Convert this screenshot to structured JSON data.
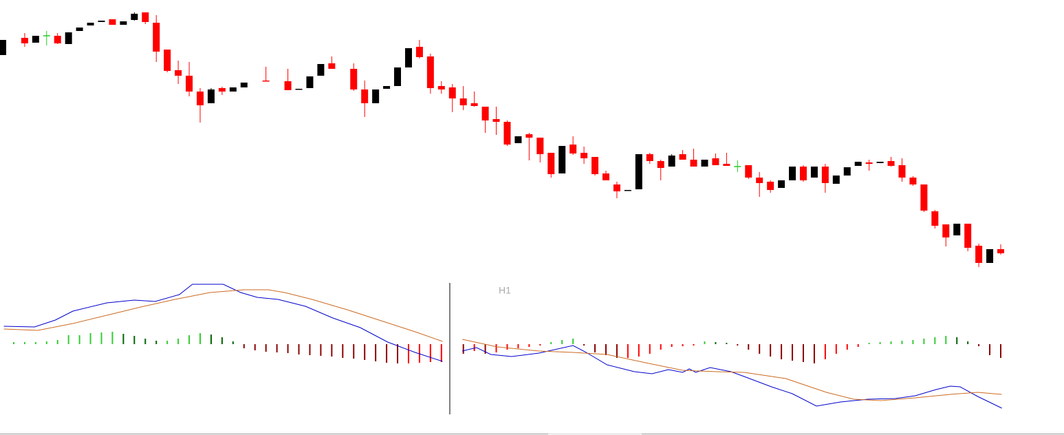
{
  "chart_data": [
    {
      "type": "candlestick",
      "categories": [
        null,
        null,
        null,
        null,
        null,
        null,
        null,
        null,
        null,
        null,
        null,
        null,
        null,
        null,
        null,
        null,
        null,
        null,
        null,
        null,
        null,
        null,
        null,
        null,
        null,
        null,
        null,
        null,
        null,
        null,
        null,
        null,
        null,
        null,
        null,
        null,
        null,
        null,
        null,
        null,
        null,
        null,
        null,
        null,
        null,
        null,
        null,
        null,
        null,
        null,
        null,
        null,
        null,
        null,
        null,
        null,
        null,
        null,
        null,
        null,
        null,
        null,
        null,
        null,
        null,
        null,
        null,
        null,
        null,
        null,
        null,
        null,
        null,
        null,
        null,
        null,
        null,
        null,
        null,
        null,
        null,
        null,
        null,
        null,
        null,
        null,
        null,
        null,
        null,
        null,
        null,
        null
      ],
      "open": [
        320,
        null,
        345,
        338,
        348,
        348,
        336,
        355,
        363,
        368,
        372,
        364,
        371,
        382,
        367,
        328,
        298,
        290,
        267,
        250,
        272,
        267,
        273,
        null,
        283,
        null,
        282,
        270,
        272,
        290,
        308,
        null,
        300,
        270,
        250,
        271,
        275,
        302,
        332,
        318,
        275,
        273,
        257,
        250,
        245,
        227,
        223,
        192,
        205,
        200,
        178,
        148,
        190,
        178,
        172,
        148,
        132,
        123,
        125,
        176,
        166,
        158,
        176,
        168,
        158,
        170,
        162,
        158,
        160,
        142,
        136,
        127,
        138,
        158,
        142,
        158,
        133,
        145,
        159,
        164,
        163,
        166,
        160,
        142,
        132,
        93,
        74,
        58,
        75,
        43,
        18,
        38
      ],
      "high": [
        342,
        null,
        352,
        348,
        355,
        352,
        353,
        360,
        367,
        370,
        372,
        369,
        382,
        382,
        378,
        328,
        312,
        310,
        272,
        272,
        274,
        273,
        280,
        null,
        303,
        null,
        300,
        271,
        289,
        307,
        318,
        null,
        308,
        283,
        270,
        275,
        302,
        330,
        342,
        322,
        282,
        278,
        275,
        267,
        245,
        245,
        225,
        202,
        207,
        200,
        178,
        188,
        202,
        187,
        172,
        152,
        136,
        124,
        176,
        178,
        168,
        176,
        182,
        184,
        168,
        177,
        178,
        167,
        160,
        150,
        138,
        138,
        158,
        160,
        158,
        162,
        145,
        157,
        165,
        168,
        165,
        172,
        170,
        144,
        132,
        95,
        74,
        75,
        75,
        46,
        38,
        45
      ],
      "low": [
        320,
        null,
        332,
        338,
        334,
        336,
        336,
        355,
        363,
        368,
        364,
        364,
        370,
        365,
        310,
        295,
        278,
        260,
        222,
        250,
        262,
        267,
        273,
        null,
        282,
        null,
        269,
        270,
        272,
        290,
        300,
        null,
        268,
        230,
        250,
        271,
        275,
        302,
        315,
        264,
        264,
        237,
        240,
        245,
        207,
        204,
        188,
        192,
        167,
        164,
        142,
        148,
        175,
        162,
        145,
        138,
        112,
        123,
        125,
        162,
        138,
        158,
        168,
        158,
        158,
        160,
        159,
        150,
        140,
        114,
        120,
        127,
        138,
        136,
        142,
        120,
        133,
        145,
        159,
        152,
        163,
        158,
        136,
        130,
        92,
        68,
        42,
        58,
        35,
        12,
        18,
        30
      ],
      "close": [
        342,
        null,
        337,
        348,
        348,
        337,
        353,
        360,
        367,
        370,
        364,
        369,
        380,
        368,
        325,
        297,
        290,
        267,
        247,
        270,
        267,
        273,
        280,
        null,
        282,
        null,
        269,
        271,
        289,
        307,
        300,
        null,
        270,
        250,
        270,
        275,
        302,
        330,
        317,
        272,
        270,
        257,
        247,
        246,
        225,
        223,
        190,
        202,
        200,
        176,
        147,
        188,
        177,
        170,
        147,
        138,
        122,
        124,
        176,
        166,
        156,
        174,
        168,
        158,
        168,
        160,
        159,
        158,
        142,
        134,
        124,
        138,
        158,
        138,
        158,
        134,
        145,
        157,
        165,
        162,
        165,
        159,
        142,
        132,
        94,
        72,
        55,
        75,
        40,
        18,
        38,
        32
      ],
      "xlim": [
        0,
        91
      ],
      "ylim": [
        0,
        400
      ],
      "up_color": "#000000",
      "down_color": "#ff0000",
      "doji_color": "#22cc22"
    },
    {
      "type": "macd",
      "annotation": "H1",
      "categories": [
        null,
        null,
        null,
        null,
        null,
        null,
        null,
        null,
        null,
        null,
        null,
        null,
        null,
        null,
        null,
        null,
        null,
        null,
        null,
        null,
        null,
        null,
        null,
        null,
        null,
        null,
        null,
        null,
        null,
        null,
        null,
        null,
        null,
        null,
        null,
        null,
        null,
        null,
        null,
        null,
        null,
        null,
        null,
        null,
        null,
        null,
        null,
        null,
        null,
        null,
        null,
        null,
        null,
        null,
        null,
        null,
        null,
        null,
        null,
        null,
        null,
        null,
        null,
        null,
        null,
        null,
        null,
        null,
        null,
        null,
        null,
        null,
        null,
        null,
        null,
        null,
        null,
        null,
        null,
        null,
        null,
        null,
        null,
        null,
        null,
        null,
        null,
        null,
        null,
        null,
        null,
        null
      ],
      "histogram": [
        null,
        3,
        3,
        3,
        4,
        6,
        13,
        13,
        16,
        17,
        18,
        15,
        12,
        8,
        5,
        5,
        8,
        13,
        16,
        14,
        10,
        4,
        -6,
        -9,
        -11,
        -12,
        -13,
        -15,
        -16,
        -17,
        -18,
        -20,
        -21,
        -23,
        -25,
        -27,
        -28,
        -28,
        -27,
        -26,
        -26,
        null,
        -14,
        -10,
        -14,
        -12,
        -8,
        -6,
        -4,
        -2,
        3,
        6,
        8,
        -2,
        -12,
        -16,
        -20,
        -20,
        -18,
        -14,
        -8,
        -4,
        -3,
        -2,
        4,
        3,
        2,
        -2,
        -8,
        -14,
        -18,
        -22,
        -24,
        -26,
        -28,
        -22,
        -14,
        -8,
        -4,
        2,
        3,
        4,
        5,
        6,
        8,
        10,
        12,
        10,
        4,
        -3,
        -16,
        -20
      ],
      "histogram_colors": {
        "positive_rising": "#33cc33",
        "positive_falling": "#006400",
        "negative_falling": "#8b0000",
        "negative_rising": "#ff0000"
      },
      "series": [
        {
          "color": "#0000cc",
          "x": [
            0.1,
            2.9,
            4.8,
            6.4,
            9.5,
            12,
            13.9,
            16.1,
            17.3,
            20.1,
            21.7,
            23.2,
            25.1,
            27.6,
            30.1,
            32.6,
            35.1,
            37.6,
            40.1
          ],
          "values": [
            26,
            25,
            35,
            48,
            60,
            64,
            62,
            72,
            87,
            87,
            75,
            68,
            65,
            55,
            38,
            24,
            3,
            -12,
            -25
          ]
        },
        {
          "color": "#cc6a20",
          "x": [
            0.1,
            3.2,
            6.4,
            9.5,
            12.6,
            15.7,
            18.9,
            22,
            24.2,
            25.7,
            28.2,
            31.4,
            34.5,
            37.6,
            40.1
          ],
          "values": [
            22,
            20,
            30,
            42,
            54,
            65,
            75,
            79,
            79,
            75,
            65,
            50,
            34,
            18,
            4
          ]
        },
        {
          "color": "#0000cc",
          "x": [
            41.9,
            43.2,
            44.5,
            46.4,
            48.9,
            52,
            53.2,
            55.1,
            57.6,
            59.2,
            60.7,
            62,
            62.6,
            63.2,
            64.5,
            66.4,
            67.6,
            70.1,
            72,
            74.2,
            76.4,
            78.9,
            81.4,
            83.2,
            85.1,
            86.4,
            87.3,
            88.9,
            91.1
          ],
          "values": [
            -10,
            -5,
            -15,
            -18,
            -13,
            -2,
            -12,
            -30,
            -40,
            -43,
            -37,
            -41,
            -36,
            -41,
            -34,
            -40,
            -47,
            -62,
            -72,
            -90,
            -84,
            -80,
            -79,
            -75,
            -66,
            -61,
            -62,
            -76,
            -93
          ]
        },
        {
          "color": "#cc6a20",
          "x": [
            41.9,
            45.1,
            48.9,
            52,
            55.1,
            58.9,
            62,
            65.1,
            67.6,
            71.4,
            75.1,
            77.6,
            80.1,
            83.2,
            86.4,
            88.9,
            91.1
          ],
          "values": [
            7,
            -4,
            -10,
            -12,
            -15,
            -28,
            -38,
            -40,
            -41,
            -50,
            -70,
            -80,
            -82,
            -78,
            -73,
            -70,
            -73
          ]
        }
      ],
      "xlim": [
        0,
        91
      ],
      "ylim": [
        -132,
        100
      ]
    }
  ]
}
